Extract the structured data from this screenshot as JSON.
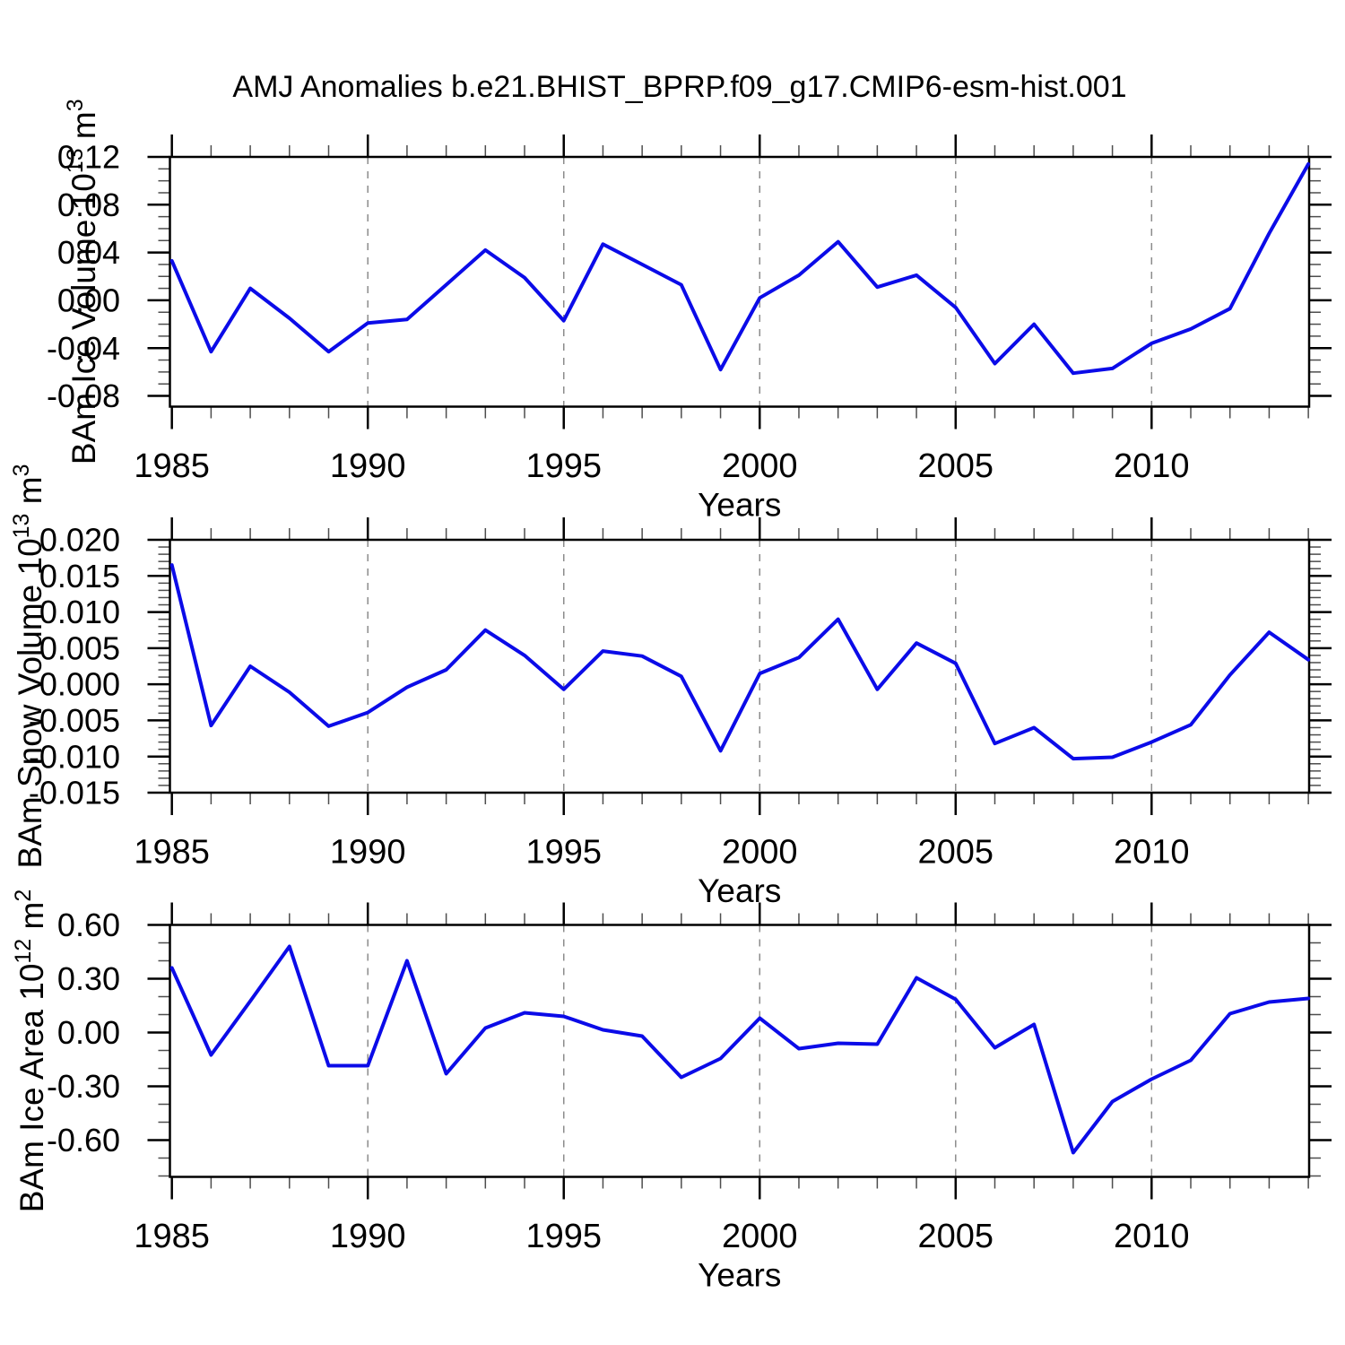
{
  "title": "AMJ Anomalies b.e21.BHIST_BPRP.f09_g17.CMIP6-esm-hist.001",
  "colors": {
    "line": "#0b0be8",
    "axis": "#000000",
    "minor_tick": "#4d4d4d",
    "grid": "#8c8c8c",
    "background": "#ffffff"
  },
  "chart_data": [
    {
      "type": "line",
      "panel": "ice-volume",
      "ylabel": "BAm Ice Volume 10^13 m^3",
      "ylabel_parts": [
        {
          "t": "BAm Ice Volume 10",
          "sup": false
        },
        {
          "t": "13",
          "sup": true
        },
        {
          "t": " m",
          "sup": false
        },
        {
          "t": "3",
          "sup": true
        }
      ],
      "xlabel": "Years",
      "x": [
        1985,
        1986,
        1987,
        1988,
        1989,
        1990,
        1991,
        1992,
        1993,
        1994,
        1995,
        1996,
        1997,
        1998,
        1999,
        2000,
        2001,
        2002,
        2003,
        2004,
        2005,
        2006,
        2007,
        2008,
        2009,
        2010,
        2011,
        2012,
        2013,
        2014
      ],
      "values": [
        0.033,
        -0.043,
        0.01,
        -0.015,
        -0.043,
        -0.019,
        -0.016,
        0.013,
        0.042,
        0.019,
        -0.017,
        0.047,
        0.03,
        0.013,
        -0.058,
        0.002,
        0.021,
        0.049,
        0.011,
        0.021,
        -0.006,
        -0.053,
        -0.02,
        -0.061,
        -0.057,
        -0.036,
        -0.024,
        -0.007,
        0.056,
        0.114
      ],
      "xlim": [
        1984.95,
        2014.02
      ],
      "ylim": [
        -0.089,
        0.12
      ],
      "xtick_values": [
        1985,
        1990,
        1995,
        2000,
        2005,
        2010
      ],
      "xtick_labels": [
        "1985",
        "1990",
        "1995",
        "2000",
        "2005",
        "2010"
      ],
      "xminor_step": 1,
      "ytick_values": [
        0.12,
        0.08,
        0.04,
        0.0,
        -0.04,
        -0.08
      ],
      "ytick_labels": [
        "0.12",
        "0.08",
        "0.04",
        "0.00",
        "-0.04",
        "-0.08"
      ],
      "yminor_step": 0.01,
      "grid_x": [
        1990,
        1995,
        2000,
        2005,
        2010
      ],
      "grid_on": "vertical-dashed",
      "legend": "none"
    },
    {
      "type": "line",
      "panel": "snow-volume",
      "ylabel": "BAm Snow Volume 10^13 m^3",
      "ylabel_parts": [
        {
          "t": "BAm Snow Volume 10",
          "sup": false
        },
        {
          "t": "13",
          "sup": true
        },
        {
          "t": " m",
          "sup": false
        },
        {
          "t": "3",
          "sup": true
        }
      ],
      "xlabel": "Years",
      "x": [
        1985,
        1986,
        1987,
        1988,
        1989,
        1990,
        1991,
        1992,
        1993,
        1994,
        1995,
        1996,
        1997,
        1998,
        1999,
        2000,
        2001,
        2002,
        2003,
        2004,
        2005,
        2006,
        2007,
        2008,
        2009,
        2010,
        2011,
        2012,
        2013,
        2014
      ],
      "values": [
        0.0165,
        -0.0057,
        0.0025,
        -0.0011,
        -0.0058,
        -0.0039,
        -0.0004,
        0.002,
        0.0075,
        0.004,
        -0.0007,
        0.0046,
        0.0039,
        0.0011,
        -0.0092,
        0.0015,
        0.0037,
        0.009,
        -0.0007,
        0.0057,
        0.0029,
        -0.0082,
        -0.006,
        -0.0103,
        -0.0101,
        -0.008,
        -0.0056,
        0.0013,
        0.0072,
        0.0034
      ],
      "xlim": [
        1984.95,
        2014.02
      ],
      "ylim": [
        -0.015,
        0.02
      ],
      "xtick_values": [
        1985,
        1990,
        1995,
        2000,
        2005,
        2010
      ],
      "xtick_labels": [
        "1985",
        "1990",
        "1995",
        "2000",
        "2005",
        "2010"
      ],
      "xminor_step": 1,
      "ytick_values": [
        0.02,
        0.015,
        0.01,
        0.005,
        0.0,
        -0.005,
        -0.01,
        -0.015
      ],
      "ytick_labels": [
        "0.020",
        "0.015",
        "0.010",
        "0.005",
        "0.000",
        "-0.005",
        "-0.010",
        "-0.015"
      ],
      "yminor_step": 0.001,
      "grid_x": [
        1990,
        1995,
        2000,
        2005,
        2010
      ],
      "grid_on": "vertical-dashed",
      "legend": "none"
    },
    {
      "type": "line",
      "panel": "ice-area",
      "ylabel": "BAm Ice Area 10^12 m^2",
      "ylabel_parts": [
        {
          "t": "BAm Ice Area 10",
          "sup": false
        },
        {
          "t": "12",
          "sup": true
        },
        {
          "t": " m",
          "sup": false
        },
        {
          "t": "2",
          "sup": true
        }
      ],
      "xlabel": "Years",
      "x": [
        1985,
        1986,
        1987,
        1988,
        1989,
        1990,
        1991,
        1992,
        1993,
        1994,
        1995,
        1996,
        1997,
        1998,
        1999,
        2000,
        2001,
        2002,
        2003,
        2004,
        2005,
        2006,
        2007,
        2008,
        2009,
        2010,
        2011,
        2012,
        2013,
        2014
      ],
      "values": [
        0.36,
        -0.125,
        0.175,
        0.48,
        -0.185,
        -0.185,
        0.4,
        -0.23,
        0.025,
        0.11,
        0.09,
        0.015,
        -0.02,
        -0.25,
        -0.145,
        0.08,
        -0.09,
        -0.06,
        -0.065,
        0.305,
        0.185,
        -0.085,
        0.045,
        -0.67,
        -0.385,
        -0.26,
        -0.155,
        0.105,
        0.17,
        0.19
      ],
      "xlim": [
        1984.95,
        2014.02
      ],
      "ylim": [
        -0.805,
        0.6
      ],
      "xtick_values": [
        1985,
        1990,
        1995,
        2000,
        2005,
        2010
      ],
      "xtick_labels": [
        "1985",
        "1990",
        "1995",
        "2000",
        "2005",
        "2010"
      ],
      "xminor_step": 1,
      "ytick_values": [
        0.6,
        0.3,
        0.0,
        -0.3,
        -0.6
      ],
      "ytick_labels": [
        "0.60",
        "0.30",
        "0.00",
        "-0.30",
        "-0.60"
      ],
      "yminor_step": 0.1,
      "grid_x": [
        1990,
        1995,
        2000,
        2005,
        2010
      ],
      "grid_on": "vertical-dashed",
      "legend": "none"
    }
  ]
}
